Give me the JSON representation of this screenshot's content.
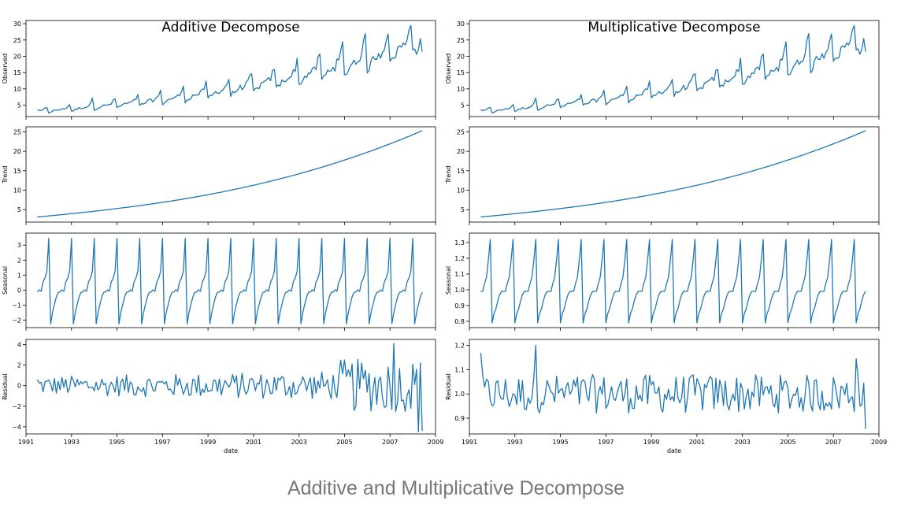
{
  "caption": "Additive and Multiplicative Decompose",
  "colors": {
    "line": "#1f77b4",
    "axes": "#000000",
    "caption": "#777777"
  },
  "chart_data": [
    {
      "type": "line",
      "title": "Additive Decompose",
      "xlabel": "date",
      "xlim": [
        1991.0,
        2009.0
      ],
      "x_ticks": [
        "1991",
        "1993",
        "1995",
        "1997",
        "1999",
        "2001",
        "2003",
        "2005",
        "2007",
        "2009"
      ],
      "x_start": 1991.5,
      "x_step_months": 1,
      "grid": false,
      "panels": [
        {
          "ylabel": "Observed",
          "ylim": [
            1.5,
            31
          ],
          "yticks": [
            5,
            10,
            15,
            20,
            25,
            30
          ],
          "values": []
        },
        {
          "ylabel": "Trend",
          "ylim": [
            1.8,
            26.3
          ],
          "yticks": [
            5,
            10,
            15,
            20,
            25
          ],
          "values": []
        },
        {
          "ylabel": "Seasonal",
          "ylim": [
            -2.5,
            3.8
          ],
          "yticks": [
            -2,
            -1,
            0,
            1,
            2,
            3
          ],
          "yticklabels": [
            "−2",
            "−1",
            "0",
            "1",
            "2",
            "3"
          ],
          "values": []
        },
        {
          "ylabel": "Residual",
          "ylim": [
            -4.7,
            4.5
          ],
          "yticks": [
            -4,
            -2,
            0,
            2,
            4
          ],
          "yticklabels": [
            "−4",
            "−2",
            "0",
            "2",
            "4"
          ],
          "values": []
        }
      ]
    },
    {
      "type": "line",
      "title": "Multiplicative Decompose",
      "xlabel": "date",
      "xlim": [
        1991.0,
        2009.0
      ],
      "x_ticks": [
        "1991",
        "1993",
        "1995",
        "1997",
        "1999",
        "2001",
        "2003",
        "2005",
        "2007",
        "2009"
      ],
      "x_start": 1991.5,
      "x_step_months": 1,
      "grid": false,
      "panels": [
        {
          "ylabel": "Observed",
          "ylim": [
            1.5,
            31
          ],
          "yticks": [
            5,
            10,
            15,
            20,
            25,
            30
          ],
          "values": []
        },
        {
          "ylabel": "Trend",
          "ylim": [
            1.8,
            26.3
          ],
          "yticks": [
            5,
            10,
            15,
            20,
            25
          ],
          "values": []
        },
        {
          "ylabel": "Seasonal",
          "ylim": [
            0.76,
            1.36
          ],
          "yticks": [
            0.8,
            0.9,
            1.0,
            1.1,
            1.2,
            1.3
          ],
          "yticklabels": [
            "0.8",
            "0.9",
            "1.0",
            "1.1",
            "1.2",
            "1.3"
          ],
          "values": []
        },
        {
          "ylabel": "Residual",
          "ylim": [
            0.835,
            1.225
          ],
          "yticks": [
            0.9,
            1.0,
            1.1,
            1.2
          ],
          "yticklabels": [
            "0.9",
            "1.0",
            "1.1",
            "1.2"
          ],
          "values": []
        }
      ]
    }
  ]
}
